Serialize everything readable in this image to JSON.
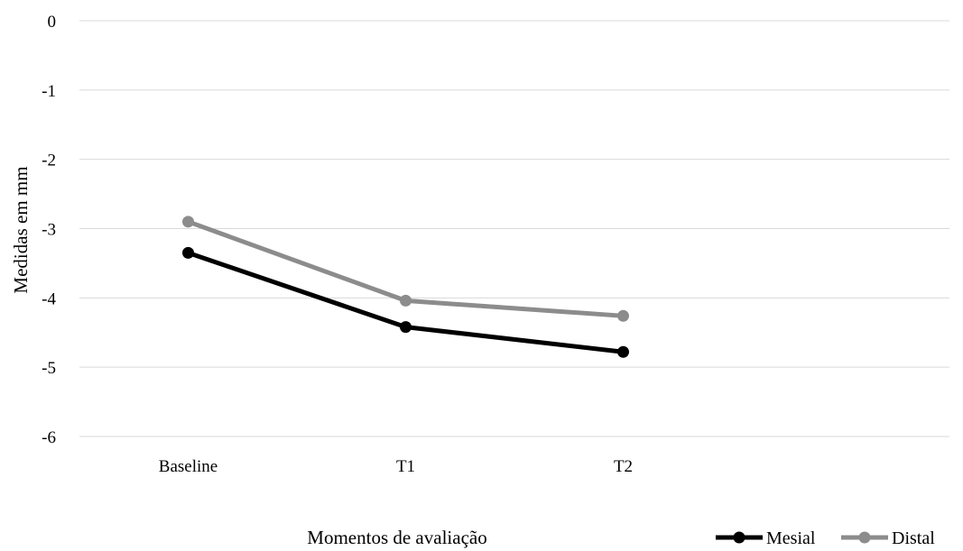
{
  "chart_data": {
    "type": "line",
    "title": "",
    "xlabel": "Momentos de avaliação",
    "ylabel": "Medidas em mm",
    "categories": [
      "Baseline",
      "T1",
      "T2"
    ],
    "ylim": [
      -6,
      0
    ],
    "yticks": [
      0,
      -1,
      -2,
      -3,
      -4,
      -5,
      -6
    ],
    "grid": true,
    "legend_position": "bottom-right",
    "series": [
      {
        "name": "Mesial",
        "color": "#000000",
        "values": [
          -3.35,
          -4.42,
          -4.78
        ]
      },
      {
        "name": "Distal",
        "color": "#8c8c8c",
        "values": [
          -2.9,
          -4.04,
          -4.26
        ]
      }
    ]
  }
}
